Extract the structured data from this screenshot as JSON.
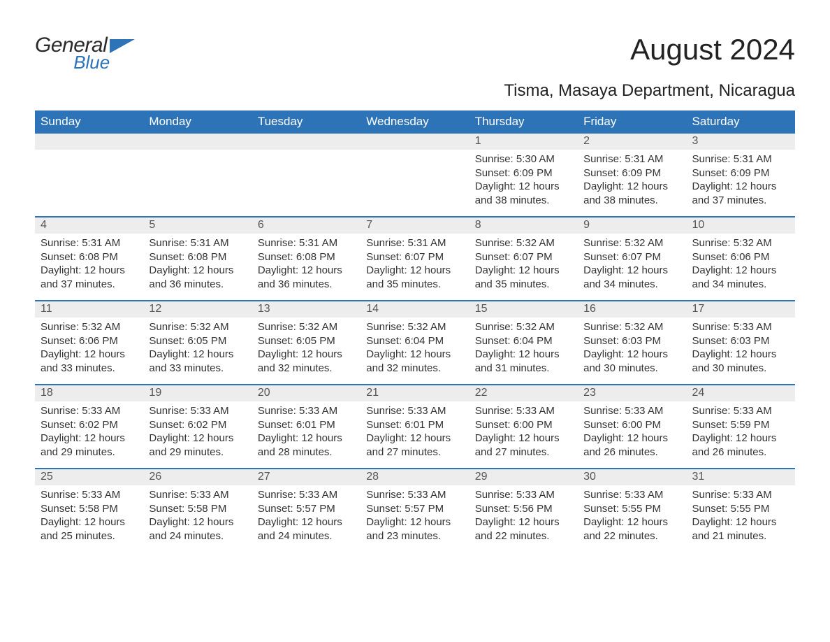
{
  "brand": {
    "word1": "General",
    "word2": "Blue"
  },
  "title": "August 2024",
  "location": "Tisma, Masaya Department, Nicaragua",
  "colors": {
    "header_bg": "#2d73b7",
    "header_text": "#ffffff",
    "daynum_bg": "#ededed",
    "rule": "#2d73b7",
    "text": "#333333",
    "page_bg": "#ffffff"
  },
  "weekdays": [
    "Sunday",
    "Monday",
    "Tuesday",
    "Wednesday",
    "Thursday",
    "Friday",
    "Saturday"
  ],
  "labels": {
    "sunrise": "Sunrise:",
    "sunset": "Sunset:",
    "daylight": "Daylight:"
  },
  "weeks": [
    [
      {
        "n": "",
        "empty": true
      },
      {
        "n": "",
        "empty": true
      },
      {
        "n": "",
        "empty": true
      },
      {
        "n": "",
        "empty": true
      },
      {
        "n": "1",
        "sunrise": "5:30 AM",
        "sunset": "6:09 PM",
        "daylight": "12 hours and 38 minutes."
      },
      {
        "n": "2",
        "sunrise": "5:31 AM",
        "sunset": "6:09 PM",
        "daylight": "12 hours and 38 minutes."
      },
      {
        "n": "3",
        "sunrise": "5:31 AM",
        "sunset": "6:09 PM",
        "daylight": "12 hours and 37 minutes."
      }
    ],
    [
      {
        "n": "4",
        "sunrise": "5:31 AM",
        "sunset": "6:08 PM",
        "daylight": "12 hours and 37 minutes."
      },
      {
        "n": "5",
        "sunrise": "5:31 AM",
        "sunset": "6:08 PM",
        "daylight": "12 hours and 36 minutes."
      },
      {
        "n": "6",
        "sunrise": "5:31 AM",
        "sunset": "6:08 PM",
        "daylight": "12 hours and 36 minutes."
      },
      {
        "n": "7",
        "sunrise": "5:31 AM",
        "sunset": "6:07 PM",
        "daylight": "12 hours and 35 minutes."
      },
      {
        "n": "8",
        "sunrise": "5:32 AM",
        "sunset": "6:07 PM",
        "daylight": "12 hours and 35 minutes."
      },
      {
        "n": "9",
        "sunrise": "5:32 AM",
        "sunset": "6:07 PM",
        "daylight": "12 hours and 34 minutes."
      },
      {
        "n": "10",
        "sunrise": "5:32 AM",
        "sunset": "6:06 PM",
        "daylight": "12 hours and 34 minutes."
      }
    ],
    [
      {
        "n": "11",
        "sunrise": "5:32 AM",
        "sunset": "6:06 PM",
        "daylight": "12 hours and 33 minutes."
      },
      {
        "n": "12",
        "sunrise": "5:32 AM",
        "sunset": "6:05 PM",
        "daylight": "12 hours and 33 minutes."
      },
      {
        "n": "13",
        "sunrise": "5:32 AM",
        "sunset": "6:05 PM",
        "daylight": "12 hours and 32 minutes."
      },
      {
        "n": "14",
        "sunrise": "5:32 AM",
        "sunset": "6:04 PM",
        "daylight": "12 hours and 32 minutes."
      },
      {
        "n": "15",
        "sunrise": "5:32 AM",
        "sunset": "6:04 PM",
        "daylight": "12 hours and 31 minutes."
      },
      {
        "n": "16",
        "sunrise": "5:32 AM",
        "sunset": "6:03 PM",
        "daylight": "12 hours and 30 minutes."
      },
      {
        "n": "17",
        "sunrise": "5:33 AM",
        "sunset": "6:03 PM",
        "daylight": "12 hours and 30 minutes."
      }
    ],
    [
      {
        "n": "18",
        "sunrise": "5:33 AM",
        "sunset": "6:02 PM",
        "daylight": "12 hours and 29 minutes."
      },
      {
        "n": "19",
        "sunrise": "5:33 AM",
        "sunset": "6:02 PM",
        "daylight": "12 hours and 29 minutes."
      },
      {
        "n": "20",
        "sunrise": "5:33 AM",
        "sunset": "6:01 PM",
        "daylight": "12 hours and 28 minutes."
      },
      {
        "n": "21",
        "sunrise": "5:33 AM",
        "sunset": "6:01 PM",
        "daylight": "12 hours and 27 minutes."
      },
      {
        "n": "22",
        "sunrise": "5:33 AM",
        "sunset": "6:00 PM",
        "daylight": "12 hours and 27 minutes."
      },
      {
        "n": "23",
        "sunrise": "5:33 AM",
        "sunset": "6:00 PM",
        "daylight": "12 hours and 26 minutes."
      },
      {
        "n": "24",
        "sunrise": "5:33 AM",
        "sunset": "5:59 PM",
        "daylight": "12 hours and 26 minutes."
      }
    ],
    [
      {
        "n": "25",
        "sunrise": "5:33 AM",
        "sunset": "5:58 PM",
        "daylight": "12 hours and 25 minutes."
      },
      {
        "n": "26",
        "sunrise": "5:33 AM",
        "sunset": "5:58 PM",
        "daylight": "12 hours and 24 minutes."
      },
      {
        "n": "27",
        "sunrise": "5:33 AM",
        "sunset": "5:57 PM",
        "daylight": "12 hours and 24 minutes."
      },
      {
        "n": "28",
        "sunrise": "5:33 AM",
        "sunset": "5:57 PM",
        "daylight": "12 hours and 23 minutes."
      },
      {
        "n": "29",
        "sunrise": "5:33 AM",
        "sunset": "5:56 PM",
        "daylight": "12 hours and 22 minutes."
      },
      {
        "n": "30",
        "sunrise": "5:33 AM",
        "sunset": "5:55 PM",
        "daylight": "12 hours and 22 minutes."
      },
      {
        "n": "31",
        "sunrise": "5:33 AM",
        "sunset": "5:55 PM",
        "daylight": "12 hours and 21 minutes."
      }
    ]
  ]
}
